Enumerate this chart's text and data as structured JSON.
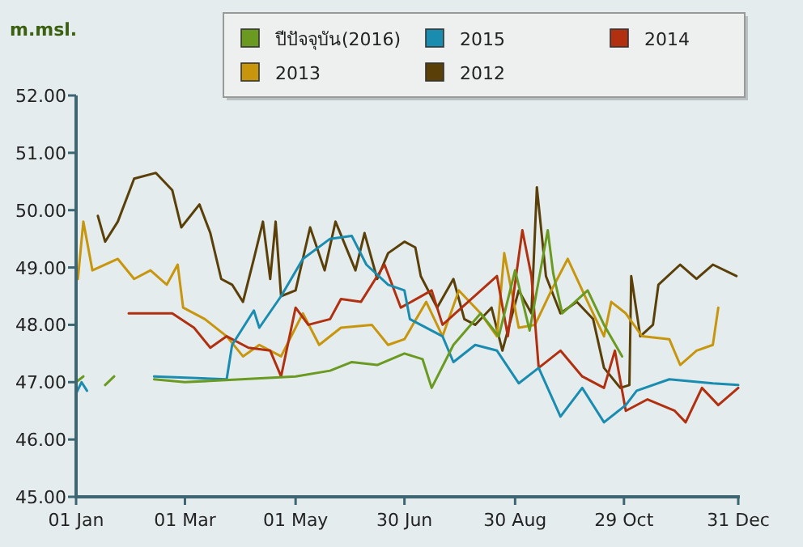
{
  "chart_data": {
    "type": "line",
    "ylabel": "m.msl.",
    "xlim": [
      "--01-01",
      "--12-31"
    ],
    "xticks": [
      {
        "value": "--01-01",
        "label": "01 Jan"
      },
      {
        "value": "--03-01",
        "label": "01 Mar"
      },
      {
        "value": "--05-01",
        "label": "01 May"
      },
      {
        "value": "--06-30",
        "label": "30 Jun"
      },
      {
        "value": "--08-30",
        "label": "30 Aug"
      },
      {
        "value": "--10-29",
        "label": "29 Oct"
      },
      {
        "value": "--12-31",
        "label": "31 Dec"
      }
    ],
    "ylim": [
      45,
      52
    ],
    "yticks": [
      {
        "value": 45,
        "label": "45.00"
      },
      {
        "value": 46,
        "label": "46.00"
      },
      {
        "value": 47,
        "label": "47.00"
      },
      {
        "value": 48,
        "label": "48.00"
      },
      {
        "value": 49,
        "label": "49.00"
      },
      {
        "value": 50,
        "label": "50.00"
      },
      {
        "value": 51,
        "label": "51.00"
      },
      {
        "value": 52,
        "label": "52.00"
      }
    ],
    "grid": false,
    "legend": "top",
    "marker": "none",
    "line_style": "solid",
    "series": [
      {
        "name": "2012",
        "color": "#5a4008",
        "x": [
          "--01-13",
          "--01-17",
          "--01-24",
          "--02-02",
          "--02-14",
          "--02-23",
          "--02-28",
          "--03-09",
          "--03-15",
          "--03-21",
          "--03-27",
          "--04-02",
          "--04-08",
          "--04-13",
          "--04-17",
          "--04-20",
          "--04-23",
          "--05-01",
          "--05-09",
          "--05-17",
          "--05-23",
          "--06-03",
          "--06-08",
          "--06-15",
          "--06-21",
          "--06-30",
          "--07-06",
          "--07-09",
          "--07-18",
          "--07-27",
          "--08-02",
          "--08-08",
          "--08-17",
          "--08-23",
          "--09-01",
          "--09-08",
          "--09-11",
          "--09-16",
          "--09-24",
          "--10-03",
          "--10-12",
          "--10-18",
          "--10-27",
          "--11-01",
          "--11-02",
          "--11-07",
          "--11-14",
          "--11-17",
          "--11-29",
          "--12-08",
          "--12-17",
          "--12-30"
        ],
        "values": [
          49.9,
          49.45,
          49.8,
          50.55,
          50.65,
          50.35,
          49.7,
          50.1,
          49.6,
          48.8,
          48.7,
          48.4,
          49.15,
          49.8,
          48.8,
          49.8,
          48.5,
          48.6,
          49.7,
          48.95,
          49.8,
          48.95,
          49.6,
          48.8,
          49.25,
          49.45,
          49.35,
          48.85,
          48.3,
          48.8,
          48.1,
          48.0,
          48.3,
          47.55,
          48.6,
          48.2,
          50.4,
          48.85,
          48.2,
          48.4,
          48.1,
          47.25,
          46.9,
          46.95,
          48.85,
          47.8,
          48.0,
          48.7,
          49.05,
          48.8,
          49.05,
          48.85
        ]
      },
      {
        "name": "2013",
        "color": "#c8960c",
        "x": [
          "--01-02",
          "--01-05",
          "--01-10",
          "--01-24",
          "--02-02",
          "--02-11",
          "--02-20",
          "--02-26",
          "--02-29",
          "--03-12",
          "--03-24",
          "--04-02",
          "--04-11",
          "--04-23",
          "--05-05",
          "--05-14",
          "--05-26",
          "--06-12",
          "--06-21",
          "--06-30",
          "--07-12",
          "--07-21",
          "--07-30",
          "--08-11",
          "--08-20",
          "--08-24",
          "--09-01",
          "--09-10",
          "--09-19",
          "--09-28",
          "--10-09",
          "--10-18",
          "--10-22",
          "--10-30",
          "--11-08",
          "--11-23",
          "--11-29",
          "--12-08",
          "--12-17",
          "--12-20"
        ],
        "values": [
          48.8,
          49.8,
          48.95,
          49.15,
          48.8,
          48.95,
          48.7,
          49.05,
          48.3,
          48.1,
          47.8,
          47.45,
          47.65,
          47.45,
          48.2,
          47.65,
          47.95,
          48.0,
          47.65,
          47.75,
          48.4,
          47.8,
          48.6,
          48.2,
          47.8,
          49.25,
          47.95,
          48.0,
          48.6,
          49.15,
          48.4,
          47.8,
          48.4,
          48.2,
          47.8,
          47.75,
          47.3,
          47.55,
          47.65,
          48.3
        ]
      },
      {
        "name": "2014",
        "color": "#b03010",
        "x": [
          "--01-30",
          "--02-23",
          "--03-06",
          "--03-15",
          "--03-24",
          "--04-05",
          "--04-17",
          "--04-23",
          "--05-01",
          "--05-08",
          "--05-20",
          "--05-26",
          "--06-06",
          "--06-19",
          "--06-28",
          "--07-15",
          "--07-21",
          "--08-20",
          "--08-26",
          "--09-03",
          "--09-08",
          "--09-12",
          "--09-24",
          "--10-06",
          "--10-18",
          "--10-24",
          "--10-30",
          "--11-11",
          "--11-26",
          "--12-02",
          "--12-11",
          "--12-20",
          "--12-31"
        ],
        "values": [
          48.2,
          48.2,
          47.95,
          47.6,
          47.8,
          47.6,
          47.55,
          47.1,
          48.3,
          48.0,
          48.1,
          48.45,
          48.4,
          49.05,
          48.3,
          48.6,
          48.0,
          48.85,
          47.8,
          49.65,
          48.85,
          47.25,
          47.55,
          47.1,
          46.9,
          47.55,
          46.5,
          46.7,
          46.5,
          46.3,
          46.9,
          46.6,
          46.9
        ]
      },
      {
        "name": "2015",
        "color": "#1a8cb0",
        "x": [
          "--01-01",
          "--01-04",
          "--01-07",
          "--01-09",
          "--02-13",
          "--03-24",
          "--03-27",
          "--04-08",
          "--04-11",
          "--04-23",
          "--05-05",
          "--05-20",
          "--06-01",
          "--06-09",
          "--06-21",
          "--06-30",
          "--07-03",
          "--07-21",
          "--07-27",
          "--08-08",
          "--08-20",
          "--09-01",
          "--09-12",
          "--09-24",
          "--10-06",
          "--10-18",
          "--10-30",
          "--11-05",
          "--11-23",
          "--12-17",
          "--12-31"
        ],
        "values": [
          46.8,
          47.0,
          46.85,
          null,
          47.1,
          47.05,
          47.65,
          48.25,
          47.95,
          48.5,
          49.15,
          49.5,
          49.55,
          49.05,
          48.7,
          48.6,
          48.1,
          47.8,
          47.35,
          47.65,
          47.55,
          46.98,
          47.25,
          46.4,
          46.9,
          46.3,
          46.6,
          46.85,
          47.05,
          46.98,
          46.95
        ]
      },
      {
        "name": "ปีปัจจุบัน(2016)",
        "color": "#6a9a1f",
        "x": [
          "--01-01",
          "--01-05",
          "--01-08",
          "--01-17",
          "--01-22",
          "--01-23",
          "--02-13",
          "--03-01",
          "--04-01",
          "--05-01",
          "--05-20",
          "--06-01",
          "--06-15",
          "--06-30",
          "--07-10",
          "--07-15",
          "--07-27",
          "--08-11",
          "--08-21",
          "--08-30",
          "--09-07",
          "--09-17",
          "--09-20",
          "--09-25",
          "--10-02",
          "--10-09",
          "--10-18",
          "--10-28"
        ],
        "values": [
          47.0,
          47.1,
          null,
          46.95,
          47.1,
          null,
          47.05,
          47.0,
          47.05,
          47.1,
          47.2,
          47.35,
          47.3,
          47.5,
          47.4,
          46.9,
          47.65,
          48.2,
          47.8,
          48.95,
          47.9,
          49.65,
          48.9,
          48.2,
          48.4,
          48.6,
          48.0,
          47.45
        ]
      }
    ]
  }
}
